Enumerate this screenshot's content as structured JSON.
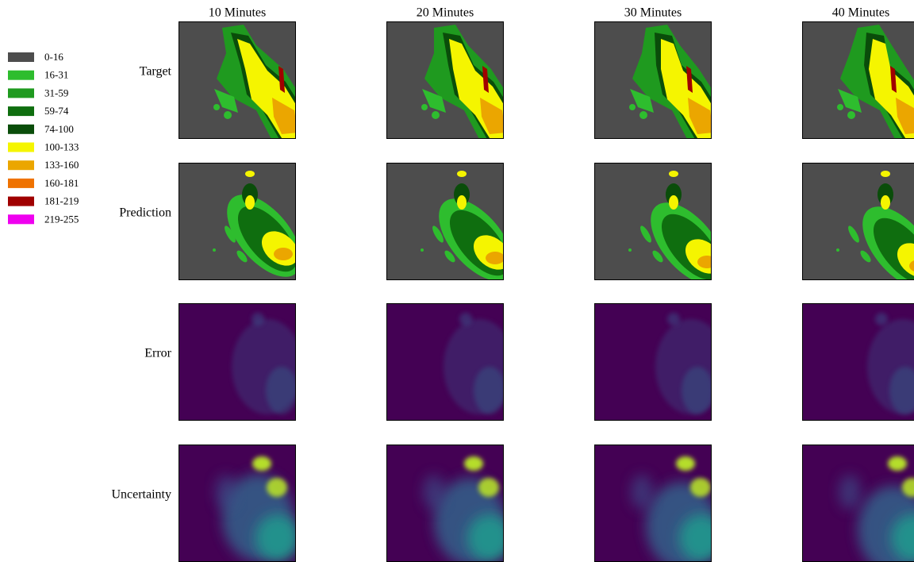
{
  "legend": {
    "items": [
      {
        "label": "0-16",
        "color": "#4d4d4d"
      },
      {
        "label": "16-31",
        "color": "#2ebd2e"
      },
      {
        "label": "31-59",
        "color": "#1f9a1f"
      },
      {
        "label": "59-74",
        "color": "#0f6e0f"
      },
      {
        "label": "74-100",
        "color": "#0a4d0a"
      },
      {
        "label": "100-133",
        "color": "#f5f500"
      },
      {
        "label": "133-160",
        "color": "#eba600"
      },
      {
        "label": "160-181",
        "color": "#ef7200"
      },
      {
        "label": "181-219",
        "color": "#a00000"
      },
      {
        "label": "219-255",
        "color": "#ef00ef"
      }
    ]
  },
  "columns": [
    "10 Minutes",
    "20 Minutes",
    "30 Minutes",
    "40 Minutes"
  ],
  "rows": [
    "Target",
    "Prediction",
    "Error",
    "Uncertainty"
  ]
}
